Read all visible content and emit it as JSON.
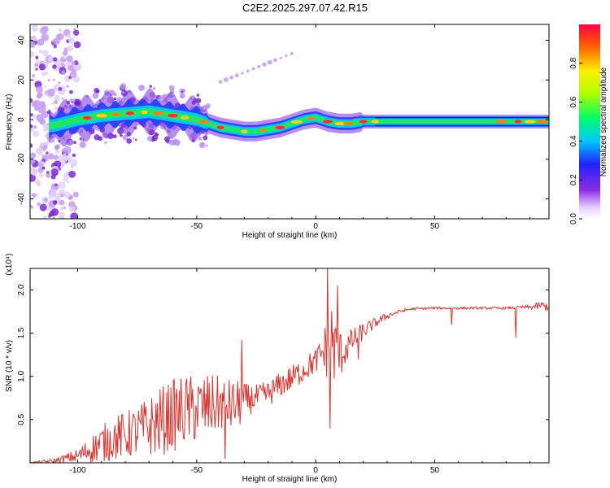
{
  "title": "C2E2.2025.297.07.42.R15",
  "chart_data": [
    {
      "type": "heatmap",
      "title": "C2E2.2025.297.07.42.R15",
      "xlabel": "Height of straight line (km)",
      "ylabel": "Frequency (Hz)",
      "xlim": [
        -120,
        98
      ],
      "ylim": [
        -50,
        48
      ],
      "xticks": [
        -100,
        -50,
        0,
        50
      ],
      "yticks": [
        -40,
        -20,
        0,
        20,
        40
      ],
      "colorbar": {
        "label": "Normalized spectral amplitude",
        "range": [
          0,
          1
        ],
        "ticks": [
          "0.0",
          "0.2",
          "0.4",
          "0.6",
          "0.8"
        ]
      },
      "ridge": {
        "x": [
          -110,
          -100,
          -90,
          -80,
          -70,
          -60,
          -50,
          -45,
          -40,
          -35,
          -30,
          -25,
          -20,
          -15,
          -10,
          -5,
          0,
          5,
          10,
          15,
          20,
          30,
          40,
          50,
          60,
          70,
          80,
          90,
          98
        ],
        "y": [
          -3,
          0,
          2,
          3,
          4,
          2,
          0,
          -2,
          -4,
          -5,
          -6,
          -6,
          -5,
          -4,
          -2,
          0,
          1,
          -1,
          -2,
          -2,
          -1,
          -1,
          -1,
          -1,
          -1,
          -1,
          -1,
          -1,
          -1
        ]
      }
    },
    {
      "type": "line",
      "xlabel": "Height of straight line (km)",
      "ylabel": "SNR (10 * v/v)",
      "y_multiplier": "(x10⁴)",
      "xlim": [
        -120,
        98
      ],
      "ylim": [
        0,
        2.25
      ],
      "xticks": [
        -100,
        -50,
        0,
        50
      ],
      "yticks": [
        "0.5",
        "1.0",
        "1.5",
        "2.0"
      ],
      "series": [
        {
          "name": "SNR",
          "color": "#e0302a",
          "x": [
            -120,
            -110,
            -100,
            -95,
            -90,
            -85,
            -80,
            -75,
            -70,
            -65,
            -60,
            -55,
            -50,
            -45,
            -40,
            -35,
            -32,
            -30,
            -25,
            -20,
            -15,
            -10,
            -5,
            0,
            3,
            5,
            6,
            7,
            8,
            10,
            12,
            15,
            20,
            25,
            30,
            35,
            40,
            50,
            60,
            70,
            80,
            87,
            90,
            95,
            98
          ],
          "base": [
            0.0,
            0.02,
            0.08,
            0.15,
            0.22,
            0.28,
            0.32,
            0.36,
            0.42,
            0.48,
            0.55,
            0.6,
            0.62,
            0.65,
            0.68,
            0.66,
            0.68,
            0.72,
            0.75,
            0.8,
            0.9,
            0.98,
            1.08,
            1.18,
            1.28,
            1.35,
            1.45,
            1.4,
            1.3,
            1.25,
            1.3,
            1.4,
            1.52,
            1.62,
            1.7,
            1.75,
            1.78,
            1.79,
            1.79,
            1.79,
            1.79,
            1.8,
            1.8,
            1.82,
            1.8
          ],
          "noise": [
            0.01,
            0.03,
            0.08,
            0.15,
            0.22,
            0.25,
            0.28,
            0.3,
            0.35,
            0.4,
            0.42,
            0.42,
            0.4,
            0.38,
            0.32,
            0.3,
            0.28,
            0.2,
            0.15,
            0.15,
            0.15,
            0.15,
            0.15,
            0.15,
            0.2,
            0.4,
            0.5,
            0.5,
            0.4,
            0.3,
            0.2,
            0.15,
            0.1,
            0.06,
            0.04,
            0.02,
            0.015,
            0.015,
            0.015,
            0.015,
            0.015,
            0.02,
            0.03,
            0.05,
            0.05
          ],
          "spikes": [
            [
              -31,
              1.42
            ],
            [
              -38,
              0.05
            ],
            [
              5,
              2.25
            ],
            [
              6,
              0.4
            ],
            [
              9,
              2.05
            ],
            [
              18,
              1.2
            ],
            [
              57,
              1.6
            ],
            [
              84,
              1.45
            ]
          ]
        }
      ]
    }
  ]
}
